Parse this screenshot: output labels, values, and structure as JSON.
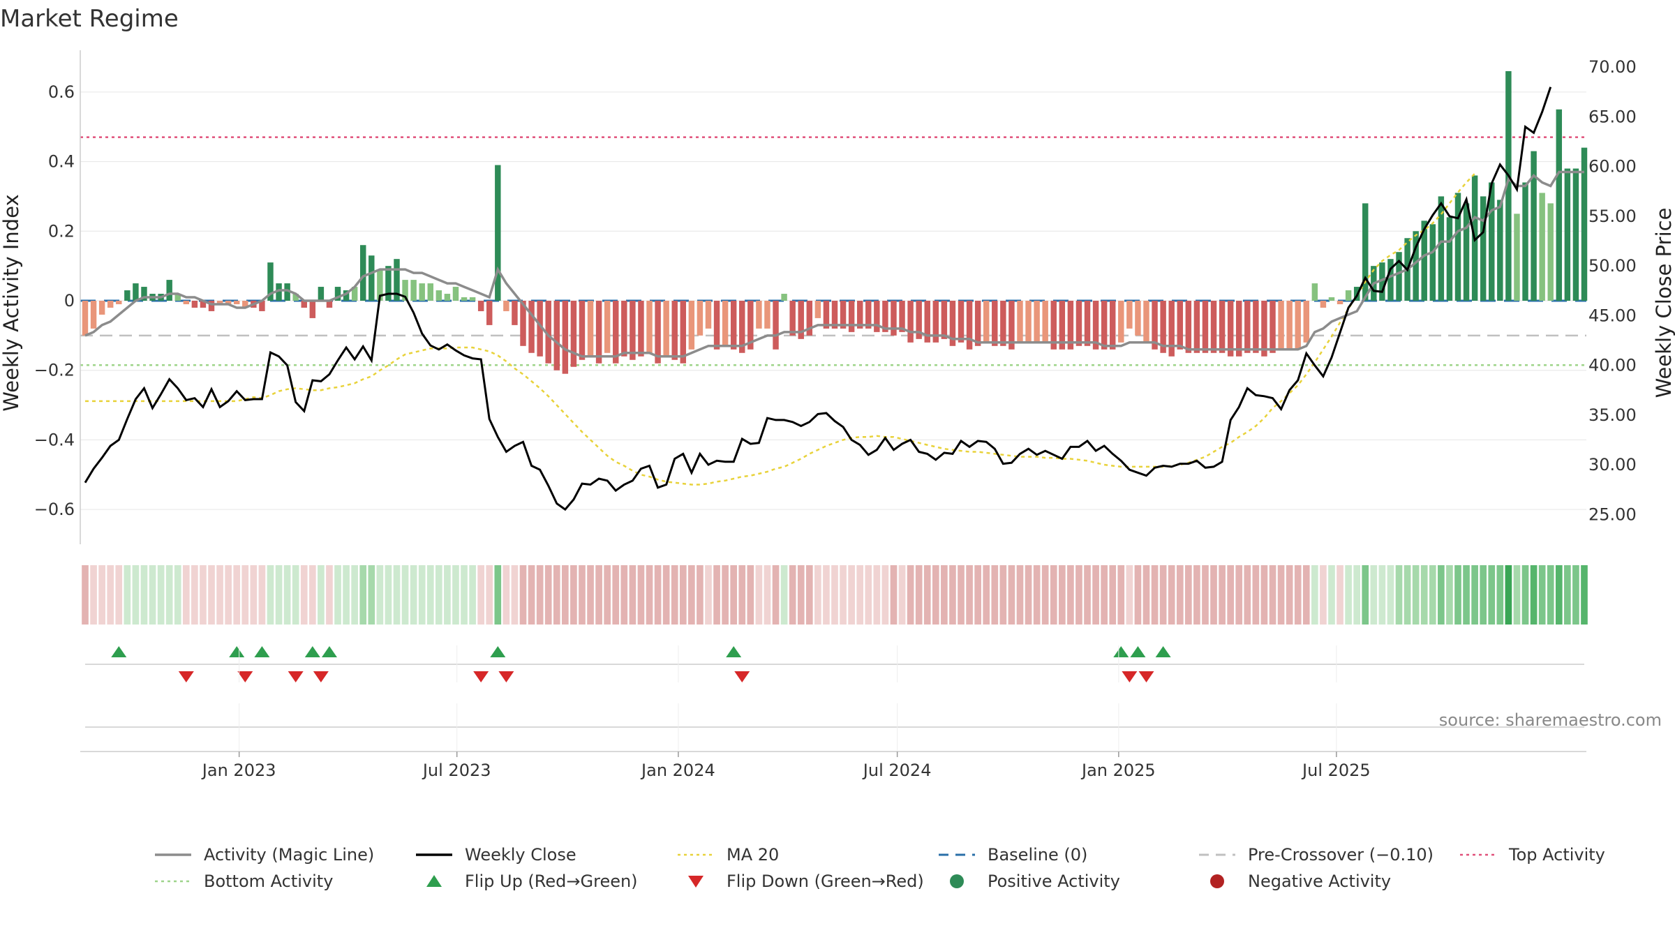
{
  "title": "Market Regime",
  "source": "source: sharemaestro.com",
  "colors": {
    "pos_strong": "#2e8b57",
    "pos_light": "#86c27f",
    "neg_strong": "#cd5c5c",
    "neg_light": "#e9967a",
    "magic": "#8c8c8c",
    "close": "#000000",
    "ma": "#e8d23a",
    "baseline": "#2a6fa8",
    "precross": "#c0c0c0",
    "top": "#e0507a",
    "bottom": "#9ed48a",
    "flip_up": "#2e9e4e",
    "flip_down": "#d62728"
  },
  "chart_data": {
    "type": "bar",
    "title": "Market Regime",
    "ylabel": "Weekly Activity Index",
    "y2label": "Weekly Close Price",
    "ylim": [
      -0.7,
      0.7
    ],
    "y2lim": [
      22.0,
      71.0
    ],
    "yticks": [
      "−0.6",
      "−0.4",
      "−0.2",
      "0",
      "0.2",
      "0.4",
      "0.6"
    ],
    "y2ticks": [
      "25.00",
      "30.00",
      "35.00",
      "40.00",
      "45.00",
      "50.00",
      "55.00",
      "60.00",
      "65.00",
      "70.00"
    ],
    "xticks": [
      "Jan 2023",
      "Jul 2023",
      "Jan 2024",
      "Jul 2024",
      "Jan 2025",
      "Jul 2025"
    ],
    "x_start": "2022-08-26",
    "grid": true,
    "legend_position": "bottom",
    "top_activity": 0.47,
    "bottom_activity": -0.185,
    "pre_crossover": -0.1,
    "baseline": 0,
    "legend": [
      {
        "label": "Activity (Magic Line)",
        "style": "line",
        "color": "#8c8c8c"
      },
      {
        "label": "Weekly Close",
        "style": "line",
        "color": "#000000"
      },
      {
        "label": "MA 20",
        "style": "dotted",
        "color": "#e8d23a"
      },
      {
        "label": "Baseline (0)",
        "style": "dashed",
        "color": "#2a6fa8"
      },
      {
        "label": "Pre-Crossover (−0.10)",
        "style": "dashed",
        "color": "#c0c0c0"
      },
      {
        "label": "Top Activity",
        "style": "dotted",
        "color": "#e0507a"
      },
      {
        "label": "Bottom Activity",
        "style": "dotted",
        "color": "#9ed48a"
      },
      {
        "label": "Flip Up (Red→Green)",
        "style": "tri-up",
        "color": "#2e9e4e"
      },
      {
        "label": "Flip Down (Green→Red)",
        "style": "tri-down",
        "color": "#d62728"
      },
      {
        "label": "Positive Activity",
        "style": "dot",
        "color": "#2e8b57"
      },
      {
        "label": "Negative Activity",
        "style": "dot",
        "color": "#b22222"
      }
    ],
    "series": [
      {
        "name": "Weekly Activity Index",
        "values": [
          -0.1,
          -0.08,
          -0.04,
          -0.02,
          -0.01,
          0.03,
          0.05,
          0.04,
          0.02,
          0.02,
          0.06,
          0.02,
          -0.01,
          -0.02,
          -0.02,
          -0.03,
          -0.01,
          -0.01,
          -0.01,
          -0.02,
          -0.02,
          -0.03,
          0.11,
          0.05,
          0.05,
          0.02,
          -0.02,
          -0.05,
          0.04,
          -0.02,
          0.04,
          0.03,
          0.04,
          0.16,
          0.13,
          0.09,
          0.1,
          0.12,
          0.06,
          0.06,
          0.05,
          0.05,
          0.03,
          0.02,
          0.04,
          0.01,
          0.01,
          -0.03,
          -0.07,
          0.39,
          -0.03,
          -0.07,
          -0.13,
          -0.15,
          -0.16,
          -0.18,
          -0.2,
          -0.21,
          -0.19,
          -0.17,
          -0.16,
          -0.18,
          -0.15,
          -0.18,
          -0.16,
          -0.17,
          -0.16,
          -0.15,
          -0.18,
          -0.16,
          -0.17,
          -0.18,
          -0.14,
          -0.1,
          -0.08,
          -0.14,
          -0.13,
          -0.14,
          -0.15,
          -0.14,
          -0.08,
          -0.08,
          -0.14,
          0.02,
          -0.1,
          -0.11,
          -0.1,
          -0.05,
          -0.08,
          -0.08,
          -0.08,
          -0.09,
          -0.08,
          -0.08,
          -0.09,
          -0.09,
          -0.1,
          -0.09,
          -0.12,
          -0.11,
          -0.12,
          -0.12,
          -0.11,
          -0.13,
          -0.12,
          -0.14,
          -0.13,
          -0.12,
          -0.13,
          -0.13,
          -0.14,
          -0.12,
          -0.12,
          -0.12,
          -0.12,
          -0.14,
          -0.14,
          -0.14,
          -0.13,
          -0.13,
          -0.14,
          -0.14,
          -0.14,
          -0.12,
          -0.08,
          -0.1,
          -0.12,
          -0.14,
          -0.15,
          -0.16,
          -0.14,
          -0.15,
          -0.15,
          -0.15,
          -0.15,
          -0.15,
          -0.16,
          -0.16,
          -0.15,
          -0.15,
          -0.16,
          -0.15,
          -0.14,
          -0.14,
          -0.14,
          -0.12,
          0.05,
          -0.02,
          0.01,
          -0.01,
          0.03,
          0.04,
          0.28,
          0.1,
          0.11,
          0.12,
          0.14,
          0.18,
          0.2,
          0.23,
          0.22,
          0.3,
          0.24,
          0.31,
          0.28,
          0.36,
          0.3,
          0.34,
          0.29,
          0.66,
          0.25,
          0.34,
          0.43,
          0.31,
          0.28,
          0.55,
          0.38,
          0.38,
          0.44
        ]
      },
      {
        "name": "Activity (Magic Line)",
        "values": [
          -0.1,
          -0.09,
          -0.07,
          -0.06,
          -0.04,
          -0.02,
          0.0,
          0.01,
          0.01,
          0.01,
          0.02,
          0.02,
          0.01,
          0.01,
          0.0,
          -0.01,
          -0.01,
          -0.01,
          -0.02,
          -0.02,
          -0.01,
          0.0,
          0.02,
          0.03,
          0.03,
          0.02,
          0.0,
          0.0,
          0.0,
          0.0,
          0.01,
          0.02,
          0.04,
          0.07,
          0.08,
          0.09,
          0.09,
          0.09,
          0.09,
          0.08,
          0.08,
          0.07,
          0.06,
          0.05,
          0.05,
          0.04,
          0.03,
          0.02,
          0.01,
          0.09,
          0.05,
          0.02,
          -0.01,
          -0.04,
          -0.07,
          -0.1,
          -0.12,
          -0.14,
          -0.15,
          -0.16,
          -0.16,
          -0.16,
          -0.16,
          -0.16,
          -0.15,
          -0.15,
          -0.15,
          -0.15,
          -0.16,
          -0.16,
          -0.16,
          -0.16,
          -0.15,
          -0.14,
          -0.13,
          -0.13,
          -0.13,
          -0.13,
          -0.13,
          -0.12,
          -0.11,
          -0.1,
          -0.1,
          -0.09,
          -0.09,
          -0.09,
          -0.08,
          -0.07,
          -0.07,
          -0.07,
          -0.07,
          -0.07,
          -0.07,
          -0.07,
          -0.07,
          -0.08,
          -0.08,
          -0.08,
          -0.09,
          -0.09,
          -0.1,
          -0.1,
          -0.1,
          -0.11,
          -0.11,
          -0.11,
          -0.12,
          -0.12,
          -0.12,
          -0.12,
          -0.12,
          -0.12,
          -0.12,
          -0.12,
          -0.12,
          -0.12,
          -0.12,
          -0.12,
          -0.12,
          -0.12,
          -0.12,
          -0.13,
          -0.13,
          -0.13,
          -0.12,
          -0.12,
          -0.12,
          -0.12,
          -0.13,
          -0.13,
          -0.13,
          -0.14,
          -0.14,
          -0.14,
          -0.14,
          -0.14,
          -0.14,
          -0.14,
          -0.14,
          -0.14,
          -0.14,
          -0.14,
          -0.14,
          -0.14,
          -0.14,
          -0.13,
          -0.09,
          -0.08,
          -0.06,
          -0.05,
          -0.04,
          -0.03,
          0.01,
          0.05,
          0.06,
          0.07,
          0.08,
          0.09,
          0.11,
          0.13,
          0.14,
          0.17,
          0.17,
          0.2,
          0.21,
          0.24,
          0.23,
          0.26,
          0.27,
          0.35,
          0.33,
          0.33,
          0.36,
          0.34,
          0.33,
          0.37,
          0.37,
          0.37,
          0.37
        ]
      },
      {
        "name": "Weekly Close",
        "values": [
          28.2,
          29.6,
          30.7,
          31.9,
          32.5,
          34.6,
          36.6,
          37.7,
          35.7,
          37.1,
          38.6,
          37.7,
          36.5,
          36.7,
          35.8,
          37.6,
          35.8,
          36.4,
          37.4,
          36.5,
          36.6,
          36.6,
          41.3,
          40.9,
          40.0,
          36.3,
          35.4,
          38.5,
          38.4,
          39.1,
          40.5,
          41.8,
          40.6,
          41.9,
          40.5,
          47.0,
          47.2,
          47.2,
          46.9,
          45.3,
          43.2,
          42.0,
          41.6,
          42.1,
          41.5,
          41.0,
          40.7,
          40.6,
          34.6,
          32.8,
          31.3,
          31.9,
          32.3,
          29.9,
          29.5,
          27.9,
          26.1,
          25.5,
          26.5,
          28.1,
          28.0,
          28.6,
          28.4,
          27.4,
          28.0,
          28.4,
          29.6,
          29.9,
          27.7,
          28.0,
          30.6,
          31.1,
          29.2,
          31.1,
          30.0,
          30.4,
          30.3,
          30.3,
          32.6,
          32.1,
          32.2,
          34.7,
          34.5,
          34.5,
          34.3,
          33.9,
          34.3,
          35.1,
          35.2,
          34.4,
          33.8,
          32.5,
          32.0,
          31.0,
          31.5,
          32.7,
          31.5,
          32.1,
          32.5,
          31.3,
          31.1,
          30.5,
          31.2,
          31.1,
          32.4,
          31.8,
          32.4,
          32.3,
          31.6,
          30.1,
          30.2,
          31.1,
          31.6,
          31.0,
          31.4,
          31.0,
          30.6,
          31.8,
          31.8,
          32.4,
          31.4,
          31.9,
          31.1,
          30.4,
          29.5,
          29.2,
          28.9,
          29.7,
          29.9,
          29.8,
          30.1,
          30.1,
          30.4,
          29.7,
          29.8,
          30.3,
          34.5,
          35.8,
          37.7,
          37.0,
          36.9,
          36.7,
          35.6,
          37.5,
          38.5,
          41.2,
          40.0,
          38.9,
          40.8,
          43.3,
          45.8,
          47.0,
          48.8,
          47.5,
          47.4,
          49.7,
          50.5,
          49.6,
          51.9,
          53.7,
          55.1,
          56.3,
          55.0,
          54.8,
          56.7,
          52.6,
          53.4,
          58.3,
          60.2,
          59.1,
          57.7,
          64.0,
          63.4,
          65.5,
          68.0
        ]
      },
      {
        "name": "MA 20",
        "values": [
          36.4,
          36.4,
          36.4,
          36.4,
          36.4,
          36.4,
          36.4,
          36.4,
          36.4,
          36.4,
          36.4,
          36.4,
          36.4,
          36.4,
          36.4,
          36.4,
          36.4,
          36.4,
          36.4,
          36.6,
          36.8,
          36.7,
          37.0,
          37.4,
          37.6,
          37.7,
          37.6,
          37.5,
          37.5,
          37.7,
          37.8,
          38.0,
          38.2,
          38.6,
          38.9,
          39.5,
          40.0,
          40.6,
          41.1,
          41.3,
          41.5,
          41.7,
          41.7,
          41.7,
          41.8,
          41.8,
          41.8,
          41.6,
          41.4,
          41.0,
          40.4,
          39.7,
          39.1,
          38.4,
          37.7,
          36.9,
          36.0,
          35.1,
          34.2,
          33.3,
          32.5,
          31.7,
          30.9,
          30.3,
          29.9,
          29.4,
          29.0,
          28.8,
          28.5,
          28.3,
          28.2,
          28.1,
          28.0,
          28.0,
          28.1,
          28.3,
          28.4,
          28.6,
          28.8,
          28.9,
          29.1,
          29.3,
          29.6,
          29.8,
          30.2,
          30.6,
          31.1,
          31.5,
          31.9,
          32.2,
          32.5,
          32.7,
          32.8,
          32.8,
          32.9,
          32.8,
          32.8,
          32.6,
          32.4,
          32.2,
          32.0,
          31.8,
          31.6,
          31.5,
          31.4,
          31.3,
          31.3,
          31.2,
          31.1,
          31.0,
          30.9,
          30.8,
          30.8,
          30.8,
          30.7,
          30.7,
          30.6,
          30.6,
          30.5,
          30.4,
          30.2,
          30.0,
          29.9,
          29.8,
          29.8,
          29.8,
          29.8,
          29.8,
          29.8,
          29.9,
          30.0,
          30.2,
          30.5,
          30.8,
          31.3,
          31.8,
          32.2,
          32.8,
          33.3,
          33.9,
          34.7,
          35.7,
          36.4,
          37.2,
          38.0,
          39.1,
          40.3,
          41.6,
          42.9,
          44.3,
          45.7,
          47.0,
          48.4,
          49.6,
          50.5,
          51.1,
          51.6,
          52.4,
          53.1,
          53.6,
          54.3,
          55.2,
          56.3,
          57.4,
          58.4,
          59.3
        ]
      }
    ],
    "flip_up_weeks": [
      4,
      18,
      21,
      27,
      29,
      49,
      77,
      123,
      125,
      128
    ],
    "flip_down_weeks": [
      12,
      19,
      25,
      28,
      47,
      50,
      78,
      124,
      126
    ]
  }
}
